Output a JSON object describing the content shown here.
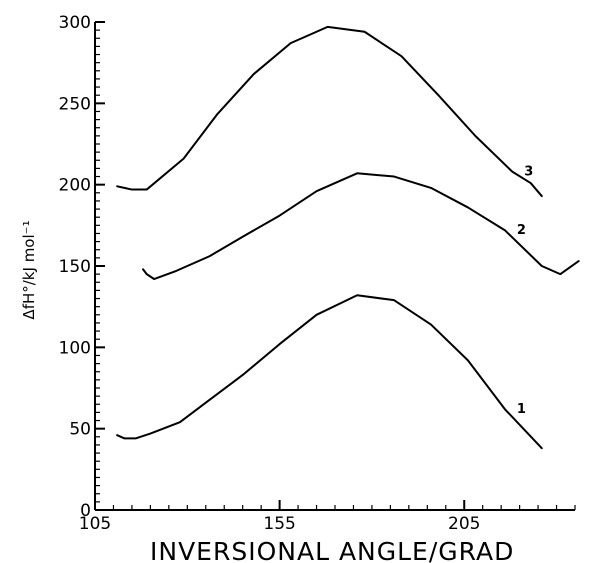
{
  "chart_data": {
    "type": "line",
    "title": "",
    "xlabel": "INVERSIONAL ANGLE/GRAD",
    "ylabel": "ΔfH°/kJ mol⁻¹",
    "xlim": [
      105,
      235
    ],
    "ylim": [
      0,
      300
    ],
    "x_ticks": [
      "105",
      "155",
      "205"
    ],
    "y_ticks": [
      "0",
      "50",
      "100",
      "150",
      "200",
      "250",
      "300"
    ],
    "grid": false,
    "series": [
      {
        "name": "1",
        "x": [
          111,
          113,
          116,
          120,
          128,
          135,
          145,
          155,
          165,
          176,
          186,
          196,
          206,
          216,
          226
        ],
        "y": [
          46,
          44,
          44,
          47,
          54,
          66,
          83,
          102,
          120,
          132,
          129,
          114,
          92,
          62,
          38
        ]
      },
      {
        "name": "2",
        "x": [
          118,
          119,
          121,
          127,
          136,
          145,
          155,
          165,
          176,
          186,
          196,
          206,
          216,
          226,
          231,
          236
        ],
        "y": [
          148,
          145,
          142,
          147,
          156,
          168,
          181,
          196,
          207,
          205,
          198,
          186,
          172,
          150,
          145,
          153
        ]
      },
      {
        "name": "3",
        "x": [
          111,
          115,
          119,
          129,
          138,
          148,
          158,
          168,
          178,
          188,
          198,
          208,
          218,
          223,
          226
        ],
        "y": [
          199,
          197,
          197,
          216,
          243,
          268,
          287,
          297,
          294,
          279,
          255,
          230,
          208,
          201,
          193
        ]
      }
    ]
  }
}
